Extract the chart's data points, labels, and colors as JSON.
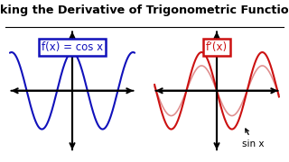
{
  "title": "Taking the Derivative of Trigonometric Functions",
  "background_color": "#ffffff",
  "left_label": "f(x) = cos x",
  "right_label": "f’(x)",
  "annotation": "sin x",
  "left_box_color": "#1111bb",
  "right_box_color": "#cc1111",
  "left_wave_color": "#1111bb",
  "right_wave_color": "#cc1111",
  "right_wave_faint_color": "#e09090",
  "axis_color": "#000000",
  "axis_lw": 1.5
}
